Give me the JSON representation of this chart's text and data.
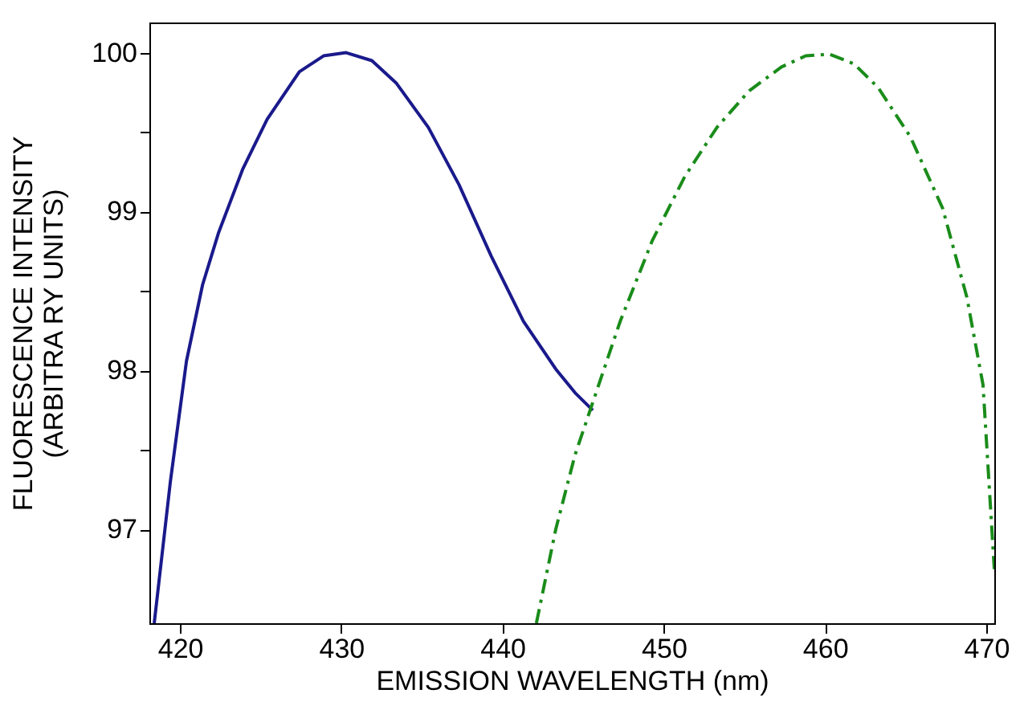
{
  "chart_data": {
    "type": "line",
    "xlabel": "EMISSION WAVELENGTH (nm)",
    "ylabel": "FLUORESCENCE INTENSITY\n(ARBITRA RY UNITS)",
    "xlim": [
      418.1,
      470.5
    ],
    "ylim": [
      96.41,
      100.19
    ],
    "xticks": [
      420,
      430,
      440,
      450,
      460,
      470
    ],
    "yticks": [
      97,
      {
        "value": 97.5,
        "label": null
      },
      98,
      {
        "value": 98.5,
        "label": null
      },
      99,
      {
        "value": 99.5,
        "label": null
      },
      100
    ],
    "grid": false,
    "series": [
      {
        "color": "#1a1a8c",
        "line_style": "solid",
        "x": [
          418.4,
          419.4,
          420.4,
          421.4,
          422.4,
          423.9,
          425.4,
          427.4,
          428.9,
          430.3,
          431.9,
          433.4,
          435.4,
          437.3,
          439.3,
          441.3,
          443.3,
          444.5,
          445.6
        ],
        "values": [
          96.41,
          97.3,
          98.06,
          98.54,
          98.87,
          99.27,
          99.58,
          99.88,
          99.98,
          100.0,
          99.95,
          99.81,
          99.53,
          99.17,
          98.72,
          98.31,
          98.01,
          97.86,
          97.75
        ]
      },
      {
        "color": "#1a8c1a",
        "line_style": "dashed",
        "x": [
          442.1,
          443.3,
          444.5,
          445.8,
          447.3,
          449.3,
          451.3,
          453.3,
          455.3,
          457.3,
          458.8,
          460.3,
          461.8,
          463.3,
          465.3,
          467.3,
          468.8,
          469.8,
          470.5
        ],
        "values": [
          96.41,
          97.0,
          97.47,
          97.86,
          98.31,
          98.82,
          99.22,
          99.53,
          99.76,
          99.91,
          99.98,
          99.99,
          99.93,
          99.78,
          99.47,
          99.02,
          98.46,
          97.91,
          96.75
        ]
      }
    ]
  }
}
